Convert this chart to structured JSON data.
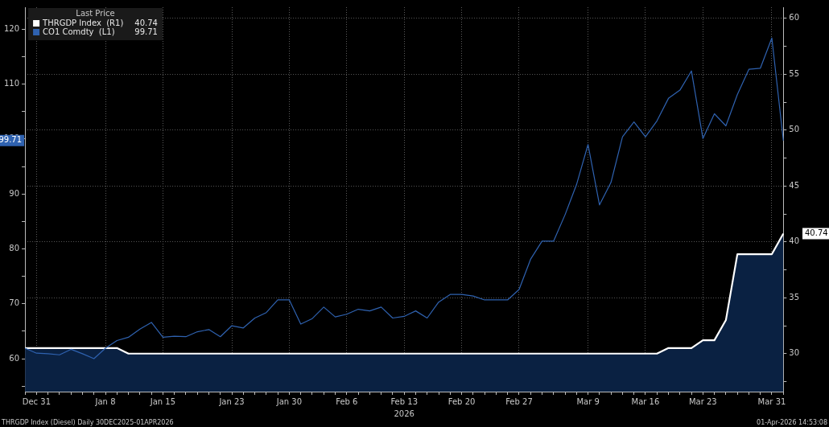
{
  "chart_data": {
    "type": "line",
    "legend_title": "Last Price",
    "xlabel": "2026",
    "categories": [
      null,
      "Dec 31",
      null,
      null,
      null,
      null,
      null,
      "Jan 8",
      null,
      null,
      null,
      null,
      "Jan 15",
      null,
      null,
      null,
      null,
      null,
      "Jan 23",
      null,
      null,
      null,
      null,
      "Jan 30",
      null,
      null,
      null,
      null,
      "Feb 6",
      null,
      null,
      null,
      null,
      "Feb 13",
      null,
      null,
      null,
      null,
      "Feb 20",
      null,
      null,
      null,
      null,
      "Feb 27",
      null,
      null,
      null,
      null,
      null,
      "Mar 9",
      null,
      null,
      null,
      null,
      "Mar 16",
      null,
      null,
      null,
      null,
      "Mar 23",
      null,
      null,
      null,
      null,
      null,
      "Mar 31",
      null
    ],
    "series": [
      {
        "name": "THRGDP Index  (R1)",
        "type": "area",
        "axis": "y2",
        "color": "#ffffff",
        "values": [
          30.5,
          30.5,
          30.5,
          30.5,
          30.5,
          30.5,
          30.5,
          30.5,
          30.5,
          30,
          30,
          30,
          30,
          30,
          30,
          30,
          30,
          30,
          30,
          30,
          30,
          30,
          30,
          30,
          30,
          30,
          30,
          30,
          30,
          30,
          30,
          30,
          30,
          30,
          30,
          30,
          30,
          30,
          30,
          30,
          30,
          30,
          30,
          30,
          30,
          30,
          30,
          30,
          30,
          30,
          30,
          30,
          30,
          30,
          30,
          30,
          30.5,
          30.5,
          30.5,
          31.2,
          31.2,
          33.0,
          38.9,
          38.9,
          38.9,
          38.9,
          40.74
        ]
      },
      {
        "name": "CO1 Comdty  (L1)",
        "type": "line",
        "axis": "y",
        "color": "#2f62b0",
        "values": [
          61.9,
          61.0,
          60.9,
          60.7,
          61.7,
          60.9,
          60.0,
          61.9,
          63.3,
          63.9,
          65.4,
          66.6,
          63.9,
          64.1,
          64.0,
          64.9,
          65.3,
          64.0,
          66.0,
          65.6,
          67.4,
          68.4,
          70.7,
          70.7,
          66.3,
          67.3,
          69.4,
          67.6,
          68.1,
          69.0,
          68.7,
          69.4,
          67.4,
          67.7,
          68.7,
          67.4,
          70.3,
          71.7,
          71.7,
          71.4,
          70.7,
          70.7,
          70.7,
          72.6,
          78.1,
          81.4,
          81.4,
          86.2,
          91.7,
          99.0,
          88.0,
          92.1,
          100.4,
          103.1,
          100.4,
          103.3,
          107.4,
          108.9,
          112.4,
          100.1,
          104.6,
          102.4,
          108.1,
          112.7,
          112.9,
          118.4,
          99.71
        ]
      }
    ],
    "ylim": [
      54,
      124
    ],
    "yticks": [
      {
        "value": 55,
        "label": null
      },
      60,
      {
        "value": 65,
        "label": null
      },
      70,
      {
        "value": 75,
        "label": null
      },
      80,
      {
        "value": 85,
        "label": null
      },
      90,
      {
        "value": 95,
        "label": null
      },
      100,
      {
        "value": 105,
        "label": null
      },
      110,
      {
        "value": 115,
        "label": null
      },
      120
    ],
    "y2lim": [
      26.6,
      61
    ],
    "y2ticks": [
      {
        "value": 27.5,
        "label": null
      },
      30,
      {
        "value": 32.5,
        "label": null
      },
      35,
      {
        "value": 37.5,
        "label": null
      },
      40,
      {
        "value": 42.5,
        "label": null
      },
      45,
      {
        "value": 47.5,
        "label": null
      },
      50,
      {
        "value": 52.5,
        "label": null
      },
      55,
      {
        "value": 57.5,
        "label": null
      },
      60
    ],
    "grid": true,
    "legend": "top left",
    "marker": "none",
    "annotations": [
      "THRGDP Index (Diesel) Daily 30DEC2025-01APR2026",
      "01-Apr-2026 14:53:08",
      "40.74",
      "99.71"
    ]
  }
}
